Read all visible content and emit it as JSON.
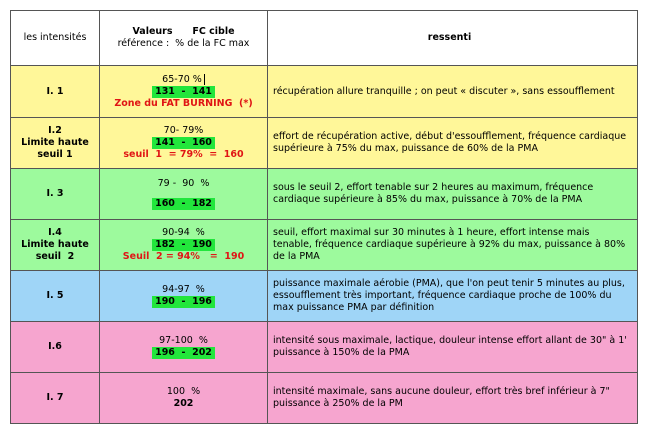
{
  "colors": {
    "yellow": "#fff799",
    "green": "#9dfa9d",
    "blue": "#9fd5f7",
    "pink": "#f6a5cf",
    "highlight": "#22e63c",
    "red_text": "#e01515"
  },
  "header": {
    "col1": "les intensités",
    "col2_line1": "Valeurs      FC cible",
    "col2_line2": "référence :  % de la FC max",
    "col3": "ressenti"
  },
  "rows": [
    {
      "intensity": [
        "I. 1"
      ],
      "pct": "65-70 %",
      "range": "131  -  141",
      "note": "Zone du FAT BURNING  (*)",
      "feeling": "récupération allure tranquille ; on peut  « discuter », sans essoufflement",
      "color": "yellow"
    },
    {
      "intensity": [
        "I.2",
        "Limite haute",
        "seuil 1"
      ],
      "pct": "70- 79%",
      "range": "141  -  160",
      "note": "seuil  1  = 79%  =  160",
      "feeling": "effort de récupération active, début d'essoufflement, fréquence cardiaque supérieure à 75% du max, puissance de 60% de la PMA",
      "color": "yellow"
    },
    {
      "intensity": [
        "I. 3"
      ],
      "pct": "79 -  90  %",
      "range": "160  -  182",
      "note": "",
      "feeling": "sous le seuil 2, effort tenable sur 2 heures au maximum, fréquence cardiaque supérieure à 85% du max, puissance à 70% de la PMA",
      "color": "green"
    },
    {
      "intensity": [
        "I.4",
        "Limite haute",
        "seuil  2"
      ],
      "pct": "90-94  %",
      "range": "182  -  190",
      "note": "Seuil  2 = 94%   =  190",
      "feeling": "seuil, effort maximal sur 30 minutes à 1 heure, effort intense mais tenable, fréquence cardiaque supérieure à 92% du max, puissance à 80% de la PMA",
      "color": "green"
    },
    {
      "intensity": [
        "I. 5"
      ],
      "pct": "94-97  %",
      "range": "190  -  196",
      "note": "",
      "feeling": "puissance maximale aérobie (PMA), que l'on peut tenir 5 minutes au plus, essoufflement très important, fréquence cardiaque proche de 100% du max puissance PMA par définition",
      "color": "blue"
    },
    {
      "intensity": [
        "I.6"
      ],
      "pct": "97-100  %",
      "range": "196  -  202",
      "note": "",
      "feeling": "intensité sous maximale, lactique, douleur intense effort allant de 30\" à 1' puissance à 150% de la PMA",
      "color": "pink"
    },
    {
      "intensity": [
        "I. 7"
      ],
      "pct": "100  %",
      "range": "202",
      "note": "",
      "feeling": "intensité maximale, sans aucune douleur, effort très bref inférieur à 7\" puissance à 250% de la PM",
      "color": "pink"
    }
  ]
}
